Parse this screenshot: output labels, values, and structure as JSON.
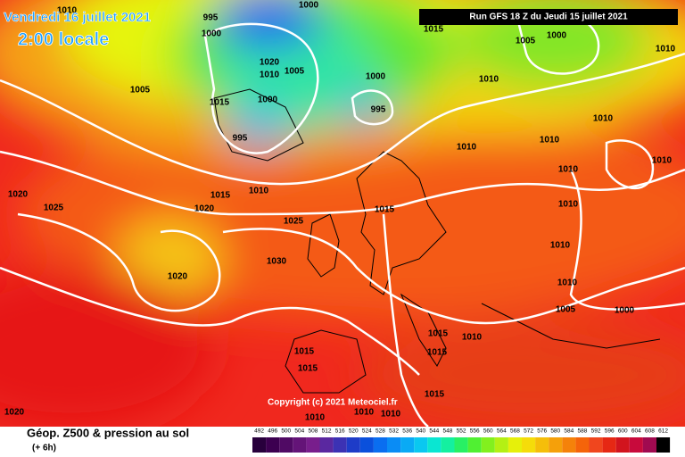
{
  "header": {
    "date": "Vendredi 16 juillet 2021",
    "time": "2:00 locale",
    "run": "Run GFS 18 Z du Jeudi 15 juillet 2021"
  },
  "isobar_labels": [
    "1010",
    "995",
    "1000",
    "1000",
    "1015",
    "1005",
    "1000",
    "1010",
    "1005",
    "1020",
    "1010",
    "1005",
    "1015",
    "1000",
    "995",
    "1000",
    "995",
    "1010",
    "1010",
    "1010",
    "1010",
    "1010",
    "1010",
    "1020",
    "1025",
    "1015",
    "1010",
    "1020",
    "1015",
    "1025",
    "1010",
    "1010",
    "1030",
    "1020",
    "1010",
    "1005",
    "1000",
    "1015",
    "1010",
    "1015",
    "1015",
    "1015",
    "1015",
    "1010",
    "1010",
    "1010",
    "1020"
  ],
  "footer": {
    "title": "Géop. Z500 & pression au sol",
    "subtitle": "(+ 6h)",
    "copyright": "Copyright (c) 2021 Meteociel.fr"
  },
  "legend": [
    492,
    496,
    500,
    504,
    508,
    512,
    516,
    520,
    524,
    528,
    532,
    536,
    540,
    544,
    548,
    552,
    556,
    560,
    564,
    568,
    572,
    576,
    580,
    584,
    588,
    592,
    596,
    600,
    604,
    608,
    612
  ]
}
